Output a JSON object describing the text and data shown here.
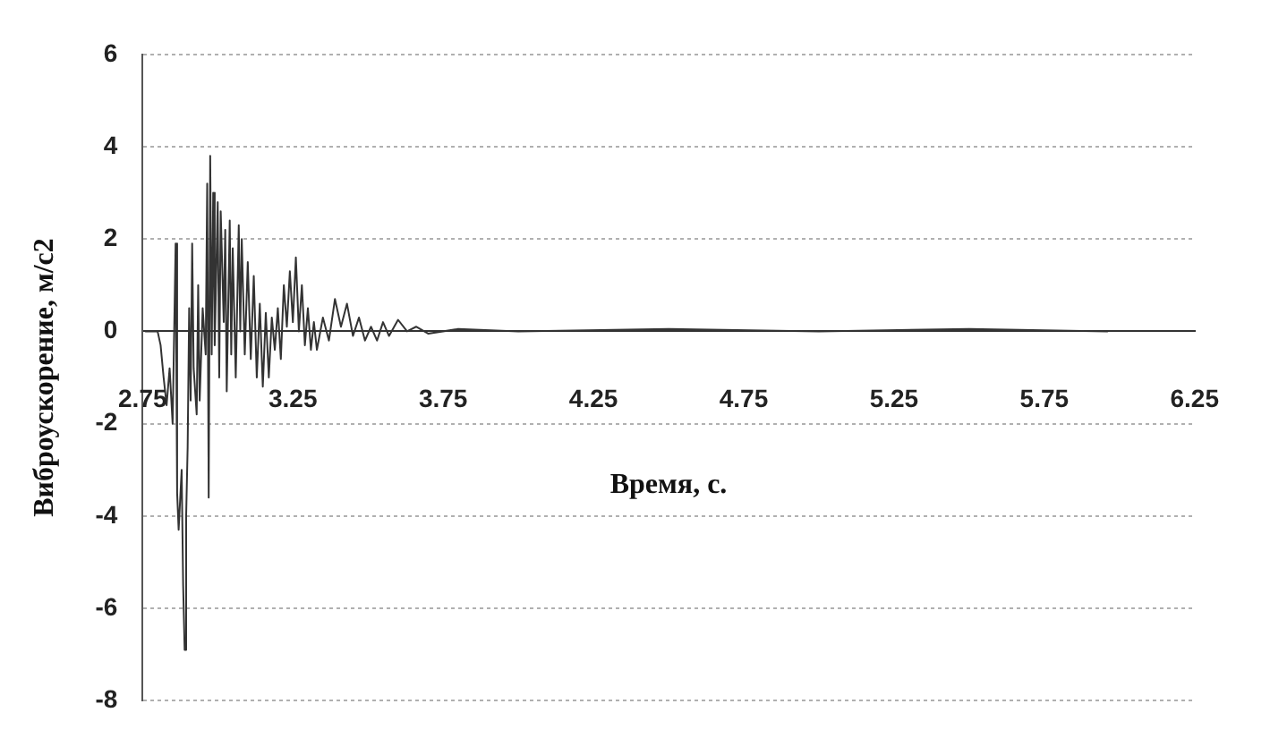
{
  "chart_data": {
    "type": "line",
    "xlabel": "Время, с.",
    "ylabel": "Виброускорение, м/с2",
    "xlim": [
      2.75,
      6.25
    ],
    "xticks": [
      2.75,
      3.25,
      3.75,
      4.25,
      4.75,
      5.25,
      5.75,
      6.25
    ],
    "ylim": [
      -8,
      6
    ],
    "yticks": [
      -8,
      -6,
      -4,
      -2,
      0,
      2,
      4,
      6
    ],
    "grid": "y",
    "marker": "none",
    "line_style": "solid",
    "series": [
      {
        "color": "#333333",
        "x": [
          2.76,
          2.8,
          2.81,
          2.82,
          2.83,
          2.84,
          2.85,
          2.86,
          2.865,
          2.87,
          2.88,
          2.885,
          2.89,
          2.895,
          2.9,
          2.905,
          2.91,
          2.915,
          2.92,
          2.93,
          2.935,
          2.94,
          2.95,
          2.96,
          2.965,
          2.97,
          2.975,
          2.98,
          2.985,
          2.99,
          3.0,
          3.005,
          3.01,
          3.02,
          3.025,
          3.03,
          3.04,
          3.045,
          3.05,
          3.06,
          3.07,
          3.075,
          3.08,
          3.09,
          3.1,
          3.11,
          3.12,
          3.13,
          3.14,
          3.15,
          3.16,
          3.17,
          3.18,
          3.19,
          3.2,
          3.21,
          3.22,
          3.23,
          3.24,
          3.25,
          3.26,
          3.27,
          3.28,
          3.29,
          3.3,
          3.31,
          3.32,
          3.33,
          3.35,
          3.37,
          3.39,
          3.41,
          3.43,
          3.45,
          3.47,
          3.49,
          3.51,
          3.53,
          3.55,
          3.57,
          3.6,
          3.63,
          3.66,
          3.7,
          3.8,
          4.0,
          4.5,
          5.0,
          5.5,
          5.96
        ],
        "values": [
          0,
          0,
          -0.3,
          -1.0,
          -1.6,
          -0.8,
          -2.0,
          1.9,
          -3.5,
          -4.3,
          -3.0,
          -5.5,
          -6.9,
          -4.0,
          -2.5,
          0.5,
          -1.5,
          1.9,
          -0.8,
          -1.8,
          1.0,
          -1.5,
          0.5,
          -0.5,
          3.2,
          -3.6,
          3.8,
          -0.5,
          3.0,
          -0.3,
          2.8,
          -1.0,
          2.6,
          0.2,
          2.2,
          -1.3,
          2.4,
          -0.5,
          1.8,
          -1.0,
          2.3,
          0,
          2.0,
          -0.5,
          1.5,
          -0.6,
          1.2,
          -1.0,
          0.6,
          -1.2,
          0.4,
          -1.0,
          0.3,
          -0.4,
          0.5,
          -0.6,
          1.0,
          0.1,
          1.3,
          0.2,
          1.6,
          0,
          1.0,
          -0.3,
          0.5,
          -0.4,
          0.2,
          -0.4,
          0.3,
          -0.2,
          0.7,
          0.1,
          0.6,
          -0.1,
          0.3,
          -0.2,
          0.1,
          -0.2,
          0.2,
          -0.1,
          0.25,
          0,
          0.1,
          -0.05,
          0.05,
          0,
          0.05,
          0,
          0.05,
          0
        ]
      }
    ]
  }
}
